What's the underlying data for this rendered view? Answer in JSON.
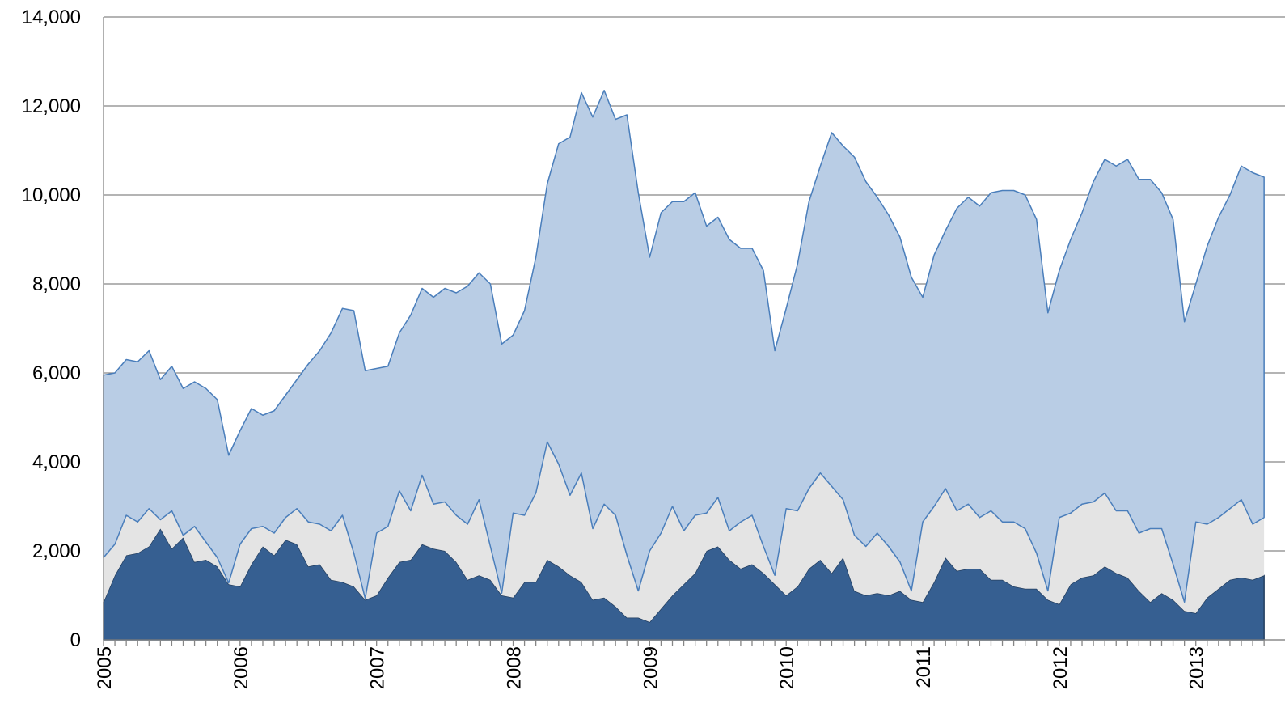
{
  "chart_data": {
    "type": "stacked-area",
    "categories": [
      "2005",
      null,
      null,
      null,
      null,
      null,
      null,
      null,
      null,
      null,
      null,
      null,
      "2006",
      null,
      null,
      null,
      null,
      null,
      null,
      null,
      null,
      null,
      null,
      null,
      "2007",
      null,
      null,
      null,
      null,
      null,
      null,
      null,
      null,
      null,
      null,
      null,
      "2008",
      null,
      null,
      null,
      null,
      null,
      null,
      null,
      null,
      null,
      null,
      null,
      "2009",
      null,
      null,
      null,
      null,
      null,
      null,
      null,
      null,
      null,
      null,
      null,
      "2010",
      null,
      null,
      null,
      null,
      null,
      null,
      null,
      null,
      null,
      null,
      null,
      "2011",
      null,
      null,
      null,
      null,
      null,
      null,
      null,
      null,
      null,
      null,
      null,
      "2012",
      null,
      null,
      null,
      null,
      null,
      null,
      null,
      null,
      null,
      null,
      null,
      "2013",
      null,
      null,
      null,
      null,
      null,
      null
    ],
    "series": [
      {
        "color": "#365f91",
        "values": [
          850,
          1450,
          1900,
          1950,
          2100,
          2500,
          2050,
          2300,
          1750,
          1800,
          1650,
          1250,
          1200,
          1700,
          2100,
          1900,
          2250,
          2150,
          1650,
          1700,
          1350,
          1300,
          1200,
          900,
          1000,
          1400,
          1750,
          1800,
          2150,
          2050,
          2000,
          1750,
          1350,
          1450,
          1350,
          1000,
          950,
          1300,
          1300,
          1800,
          1650,
          1450,
          1300,
          900,
          950,
          750,
          500,
          500,
          400,
          700,
          1000,
          1250,
          1500,
          2000,
          2100,
          1800,
          1600,
          1700,
          1500,
          1250,
          1000,
          1200,
          1600,
          1800,
          1500,
          1850,
          1100,
          1000,
          1050,
          1000,
          1100,
          900,
          850,
          1300,
          1850,
          1550,
          1600,
          1600,
          1350,
          1350,
          1200,
          1150,
          1150,
          900,
          800,
          1250,
          1400,
          1450,
          1650,
          1500,
          1400,
          1100,
          850,
          1050,
          900,
          650,
          600,
          950,
          1150,
          1350,
          1400,
          1350,
          1450
        ]
      },
      {
        "color": "#e4e4e4",
        "values": [
          1000,
          700,
          900,
          700,
          850,
          200,
          850,
          50,
          800,
          400,
          200,
          30,
          950,
          800,
          450,
          500,
          500,
          800,
          1000,
          900,
          1100,
          1500,
          750,
          30,
          1400,
          1150,
          1600,
          1100,
          1550,
          1000,
          1100,
          1050,
          1250,
          1700,
          750,
          50,
          1900,
          1500,
          2000,
          2650,
          2300,
          1800,
          2450,
          1600,
          2100,
          2050,
          1400,
          600,
          1600,
          1700,
          2000,
          1200,
          1300,
          850,
          1100,
          650,
          1050,
          1100,
          600,
          200,
          1950,
          1700,
          1800,
          1950,
          1950,
          1300,
          1250,
          1100,
          1350,
          1100,
          650,
          200,
          1800,
          1700,
          1550,
          1350,
          1450,
          1150,
          1550,
          1300,
          1450,
          1350,
          800,
          200,
          1950,
          1600,
          1650,
          1650,
          1650,
          1400,
          1500,
          1300,
          1650,
          1450,
          800,
          200,
          2050,
          1650,
          1600,
          1600,
          1750,
          1250,
          1300
        ]
      },
      {
        "color": "#b9cde5",
        "values": [
          4100,
          3850,
          3500,
          3600,
          3550,
          3150,
          3250,
          3300,
          3250,
          3450,
          3550,
          2870,
          2550,
          2700,
          2500,
          2750,
          2750,
          2900,
          3550,
          3900,
          4450,
          4650,
          5450,
          5120,
          3700,
          3600,
          3550,
          4400,
          4200,
          4650,
          4800,
          5000,
          5350,
          5100,
          5900,
          5600,
          4000,
          4600,
          5300,
          5800,
          7200,
          8050,
          8550,
          9250,
          9300,
          8900,
          9900,
          8950,
          6600,
          7200,
          6850,
          7400,
          7250,
          6450,
          6300,
          6550,
          6150,
          6000,
          6200,
          5050,
          4500,
          5550,
          6450,
          6900,
          7950,
          7950,
          8500,
          8200,
          7550,
          7450,
          7300,
          7050,
          5050,
          5650,
          5800,
          6800,
          6900,
          7000,
          7150,
          7450,
          7450,
          7500,
          7500,
          6250,
          5550,
          6150,
          6550,
          7200,
          7500,
          7750,
          7900,
          7950,
          7850,
          7550,
          7750,
          6300,
          5350,
          6250,
          6750,
          7050,
          7500,
          7900,
          7650
        ]
      }
    ],
    "ylim": [
      0,
      14000
    ],
    "yticks": [
      0,
      {
        "value": 2000,
        "label": "2,000"
      },
      {
        "value": 4000,
        "label": "4,000"
      },
      {
        "value": 6000,
        "label": "6,000"
      },
      {
        "value": 8000,
        "label": "8,000"
      },
      {
        "value": 10000,
        "label": "10,000"
      },
      {
        "value": 12000,
        "label": "12,000"
      },
      {
        "value": 14000,
        "label": "14,000"
      }
    ],
    "grid": true
  }
}
